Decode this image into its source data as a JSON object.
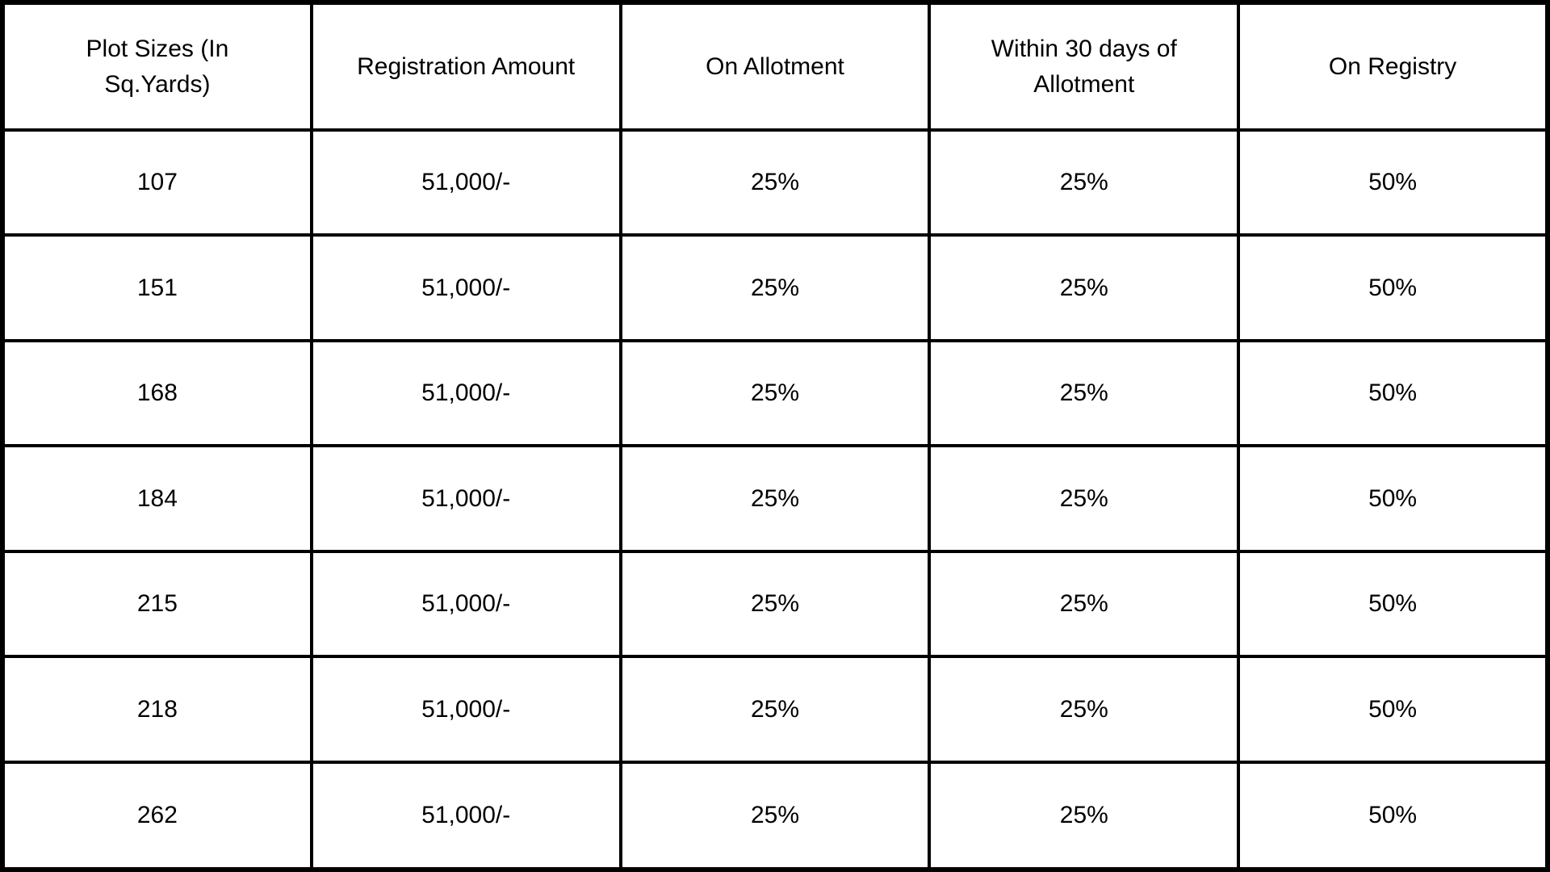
{
  "colors": {
    "background": "#ffffff",
    "border": "#000000",
    "text": "#000000"
  },
  "table": {
    "columns": [
      "Plot Sizes (In Sq.Yards)",
      "Registration Amount",
      "On Allotment",
      "Within 30 days of Allotment",
      "On Registry"
    ],
    "rows": [
      [
        "107",
        "51,000/-",
        "25%",
        "25%",
        "50%"
      ],
      [
        "151",
        "51,000/-",
        "25%",
        "25%",
        "50%"
      ],
      [
        "168",
        "51,000/-",
        "25%",
        "25%",
        "50%"
      ],
      [
        "184",
        "51,000/-",
        "25%",
        "25%",
        "50%"
      ],
      [
        "215",
        "51,000/-",
        "25%",
        "25%",
        "50%"
      ],
      [
        "218",
        "51,000/-",
        "25%",
        "25%",
        "50%"
      ],
      [
        "262",
        "51,000/-",
        "25%",
        "25%",
        "50%"
      ]
    ]
  }
}
